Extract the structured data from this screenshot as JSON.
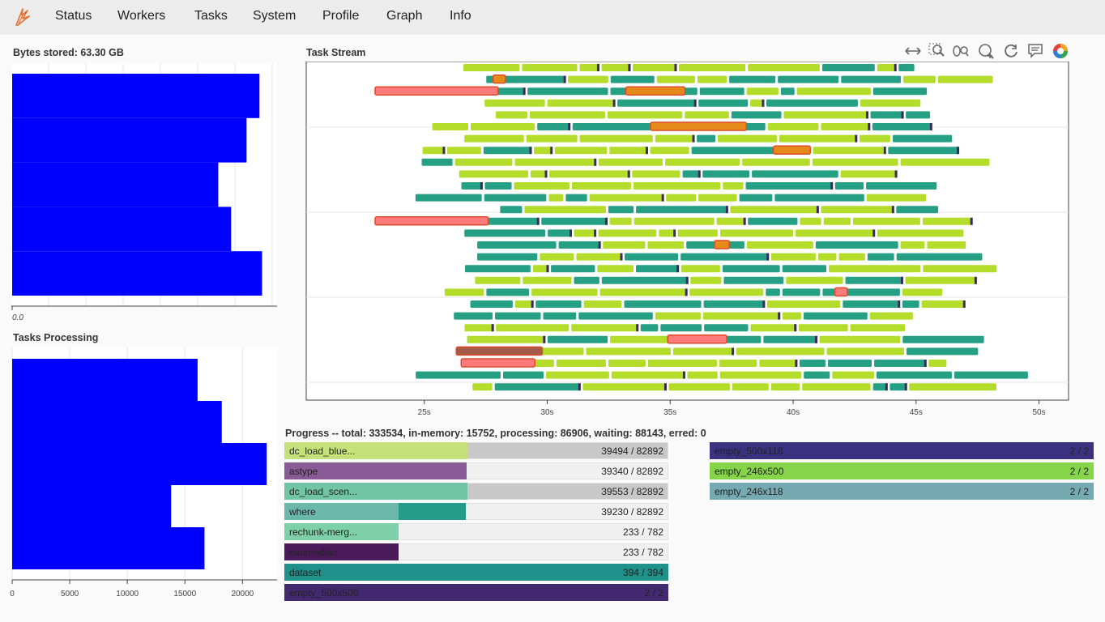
{
  "nav": {
    "items": [
      "Status",
      "Workers",
      "Tasks",
      "System",
      "Profile",
      "Graph",
      "Info"
    ]
  },
  "bytes_stored": {
    "title": "Bytes stored: 63.30 GB",
    "axis_label": "0.0",
    "bars": [
      0.96,
      0.91,
      0.8,
      0.85,
      0.97
    ],
    "color": "#0000ff"
  },
  "tasks_processing": {
    "title": "Tasks Processing",
    "ticks": [
      "0",
      "5000",
      "10000",
      "15000",
      "20000"
    ],
    "tick_values": [
      0,
      5000,
      10000,
      15000,
      20000
    ],
    "xmax": 23000,
    "values": [
      16100,
      18200,
      22100,
      13800,
      16700
    ],
    "color": "#0000ff"
  },
  "task_stream": {
    "title": "Task Stream",
    "x_ticks": [
      "25s",
      "30s",
      "35s",
      "40s",
      "45s",
      "50s"
    ],
    "x_tick_values": [
      25,
      30,
      35,
      40,
      45,
      50
    ],
    "xlim": [
      20.2,
      51.2
    ],
    "row_count": 28,
    "grid_rows": [
      3,
      10,
      17,
      24
    ],
    "colors": {
      "lime": "#b4dc2a",
      "teal": "#26a085",
      "red": "#ff7b7b",
      "orange": "#e58a1a",
      "brown": "#a55a4a",
      "dark": "#3a2a5a"
    }
  },
  "toolbar": {
    "icons": [
      "pan-icon",
      "box-zoom-icon",
      "wheel-zoom-icon",
      "zoom-in-icon",
      "reset-icon",
      "hover-icon",
      "bokeh-logo-icon"
    ]
  },
  "progress": {
    "title": "Progress -- total: 333534, in-memory: 15752, processing: 86906, waiting: 88143, erred: 0",
    "left": [
      {
        "name": "dc_load_blue...",
        "count": "39494 / 82892",
        "mem": 0.476,
        "proc": 0.0,
        "mem_color": "#c5e27a",
        "proc_color": "#c5e27a",
        "track": "#c8c8c8"
      },
      {
        "name": "astype",
        "count": "39340 / 82892",
        "mem": 0.474,
        "proc": 0.0,
        "mem_color": "#8a5a96",
        "proc_color": "#8a5a96",
        "track": "#f0f0f0"
      },
      {
        "name": "dc_load_scen...",
        "count": "39553 / 82892",
        "mem": 0.477,
        "proc": 0.0,
        "mem_color": "#72c4a6",
        "proc_color": "#72c4a6",
        "track": "#c8c8c8"
      },
      {
        "name": "where",
        "count": "39230 / 82892",
        "mem": 0.297,
        "proc": 0.176,
        "mem_color": "#6ab8aa",
        "proc_color": "#239a8a",
        "track": "#f0f0f0"
      },
      {
        "name": "rechunk-merg...",
        "count": "233 / 782",
        "mem": 0.298,
        "proc": 0.0,
        "mem_color": "#7dd0a8",
        "proc_color": "#7dd0a8",
        "track": "#f0f0f0"
      },
      {
        "name": "nanmedian",
        "count": "233 / 782",
        "mem": 0.298,
        "proc": 0.0,
        "mem_color": "#4a1a5a",
        "proc_color": "#4a1a5a",
        "track": "#f0f0f0"
      },
      {
        "name": "dataset",
        "count": "394 / 394",
        "mem": 1.0,
        "proc": 0.0,
        "mem_color": "#20908a",
        "proc_color": "#20908a",
        "track": "#f0f0f0"
      },
      {
        "name": "empty_500x500",
        "count": "2 / 2",
        "mem": 1.0,
        "proc": 0.0,
        "mem_color": "#43296f",
        "proc_color": "#43296f",
        "track": "#f0f0f0"
      }
    ],
    "right": [
      {
        "name": "empty_500x118",
        "count": "2 / 2",
        "mem": 1.0,
        "proc": 0.0,
        "mem_color": "#3a3280",
        "proc_color": "#3a3280",
        "track": "#f0f0f0"
      },
      {
        "name": "empty_246x500",
        "count": "2 / 2",
        "mem": 1.0,
        "proc": 0.0,
        "mem_color": "#86d44a",
        "proc_color": "#86d44a",
        "track": "#f0f0f0"
      },
      {
        "name": "empty_246x118",
        "count": "2 / 2",
        "mem": 1.0,
        "proc": 0.0,
        "mem_color": "#76aab2",
        "proc_color": "#76aab2",
        "track": "#f0f0f0"
      }
    ]
  }
}
